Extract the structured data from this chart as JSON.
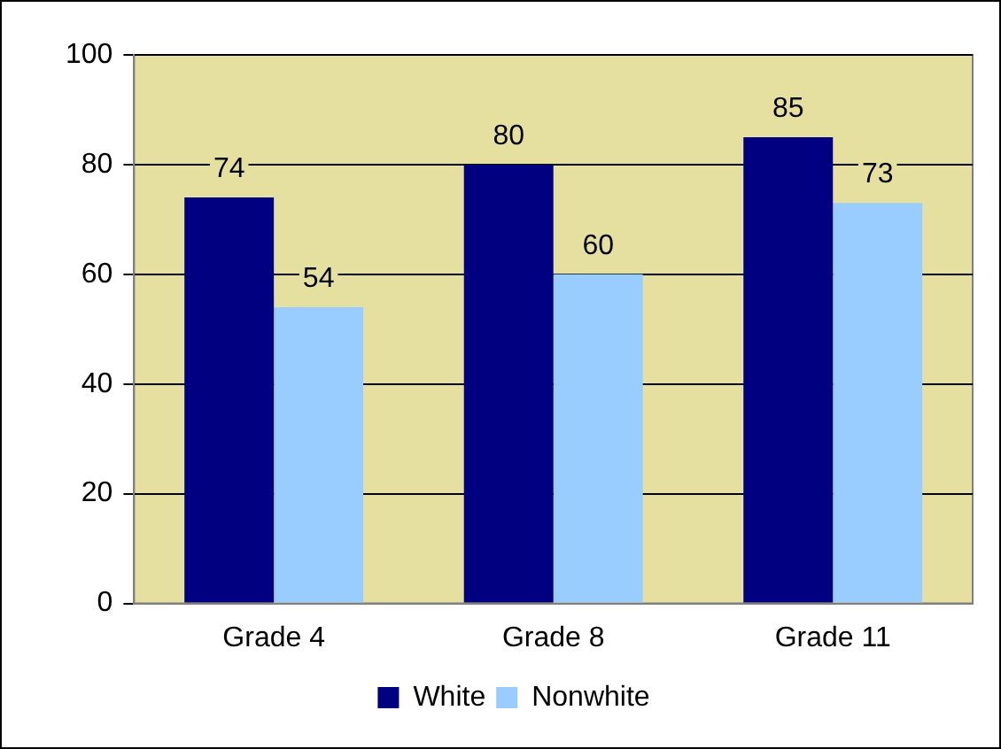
{
  "chart_data": {
    "type": "bar",
    "categories": [
      "Grade 4",
      "Grade 8",
      "Grade 11"
    ],
    "series": [
      {
        "name": "White",
        "color": "#000080",
        "values": [
          74,
          80,
          85
        ]
      },
      {
        "name": "Nonwhite",
        "color": "#99ccff",
        "values": [
          54,
          60,
          73
        ]
      }
    ],
    "ylim": [
      0,
      100
    ],
    "yticks": [
      0,
      20,
      40,
      60,
      80,
      100
    ],
    "grid": "y",
    "legend": "bottom",
    "data_labels": true
  }
}
